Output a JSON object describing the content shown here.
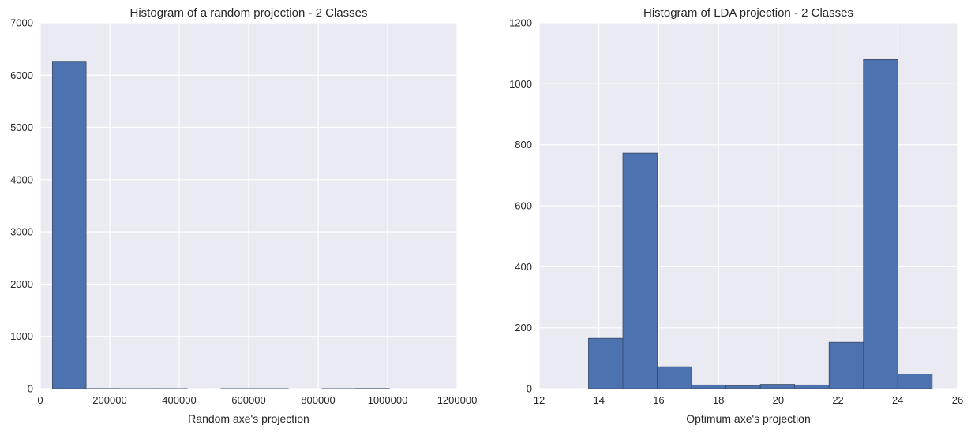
{
  "chart_data": [
    {
      "type": "bar",
      "title": "Histogram of a random projection - 2 Classes",
      "xlabel": "Random axe's projection",
      "ylabel": "",
      "xlim": [
        0,
        1200000
      ],
      "ylim": [
        0,
        7000
      ],
      "xticks": [
        0,
        200000,
        400000,
        600000,
        800000,
        1000000,
        1200000
      ],
      "xtick_labels": [
        "0",
        "200000",
        "400000",
        "600000",
        "800000",
        "1000000",
        "1200000"
      ],
      "yticks": [
        0,
        1000,
        2000,
        3000,
        4000,
        5000,
        6000,
        7000
      ],
      "ytick_labels": [
        "0",
        "1000",
        "2000",
        "3000",
        "4000",
        "5000",
        "6000",
        "7000"
      ],
      "bins": [
        {
          "x0": 35000,
          "x1": 132000,
          "count": 6250
        },
        {
          "x0": 132000,
          "x1": 229000,
          "count": 2
        },
        {
          "x0": 229000,
          "x1": 326000,
          "count": 1
        },
        {
          "x0": 326000,
          "x1": 423000,
          "count": 1
        },
        {
          "x0": 423000,
          "x1": 520000,
          "count": 0
        },
        {
          "x0": 520000,
          "x1": 617000,
          "count": 1
        },
        {
          "x0": 617000,
          "x1": 714000,
          "count": 1
        },
        {
          "x0": 714000,
          "x1": 811000,
          "count": 0
        },
        {
          "x0": 811000,
          "x1": 908000,
          "count": 1
        },
        {
          "x0": 908000,
          "x1": 1005000,
          "count": 3
        }
      ],
      "grid": true,
      "bar_color": "#4c72b0"
    },
    {
      "type": "bar",
      "title": "Histogram of LDA projection - 2 Classes",
      "xlabel": "Optimum axe's projection",
      "ylabel": "",
      "xlim": [
        12,
        26
      ],
      "ylim": [
        0,
        1200
      ],
      "xticks": [
        12,
        14,
        16,
        18,
        20,
        22,
        24,
        26
      ],
      "xtick_labels": [
        "12",
        "14",
        "16",
        "18",
        "20",
        "22",
        "24",
        "26"
      ],
      "yticks": [
        0,
        200,
        400,
        600,
        800,
        1000,
        1200
      ],
      "ytick_labels": [
        "0",
        "200",
        "400",
        "600",
        "800",
        "1000",
        "1200"
      ],
      "bins": [
        {
          "x0": 13.65,
          "x1": 14.8,
          "count": 165
        },
        {
          "x0": 14.8,
          "x1": 15.95,
          "count": 773
        },
        {
          "x0": 15.95,
          "x1": 17.1,
          "count": 72
        },
        {
          "x0": 17.1,
          "x1": 18.25,
          "count": 12
        },
        {
          "x0": 18.25,
          "x1": 19.4,
          "count": 9
        },
        {
          "x0": 19.4,
          "x1": 20.55,
          "count": 14
        },
        {
          "x0": 20.55,
          "x1": 21.7,
          "count": 12
        },
        {
          "x0": 21.7,
          "x1": 22.85,
          "count": 152
        },
        {
          "x0": 22.85,
          "x1": 24.0,
          "count": 1080
        },
        {
          "x0": 24.0,
          "x1": 25.15,
          "count": 48
        }
      ],
      "grid": true,
      "bar_color": "#4c72b0"
    }
  ]
}
